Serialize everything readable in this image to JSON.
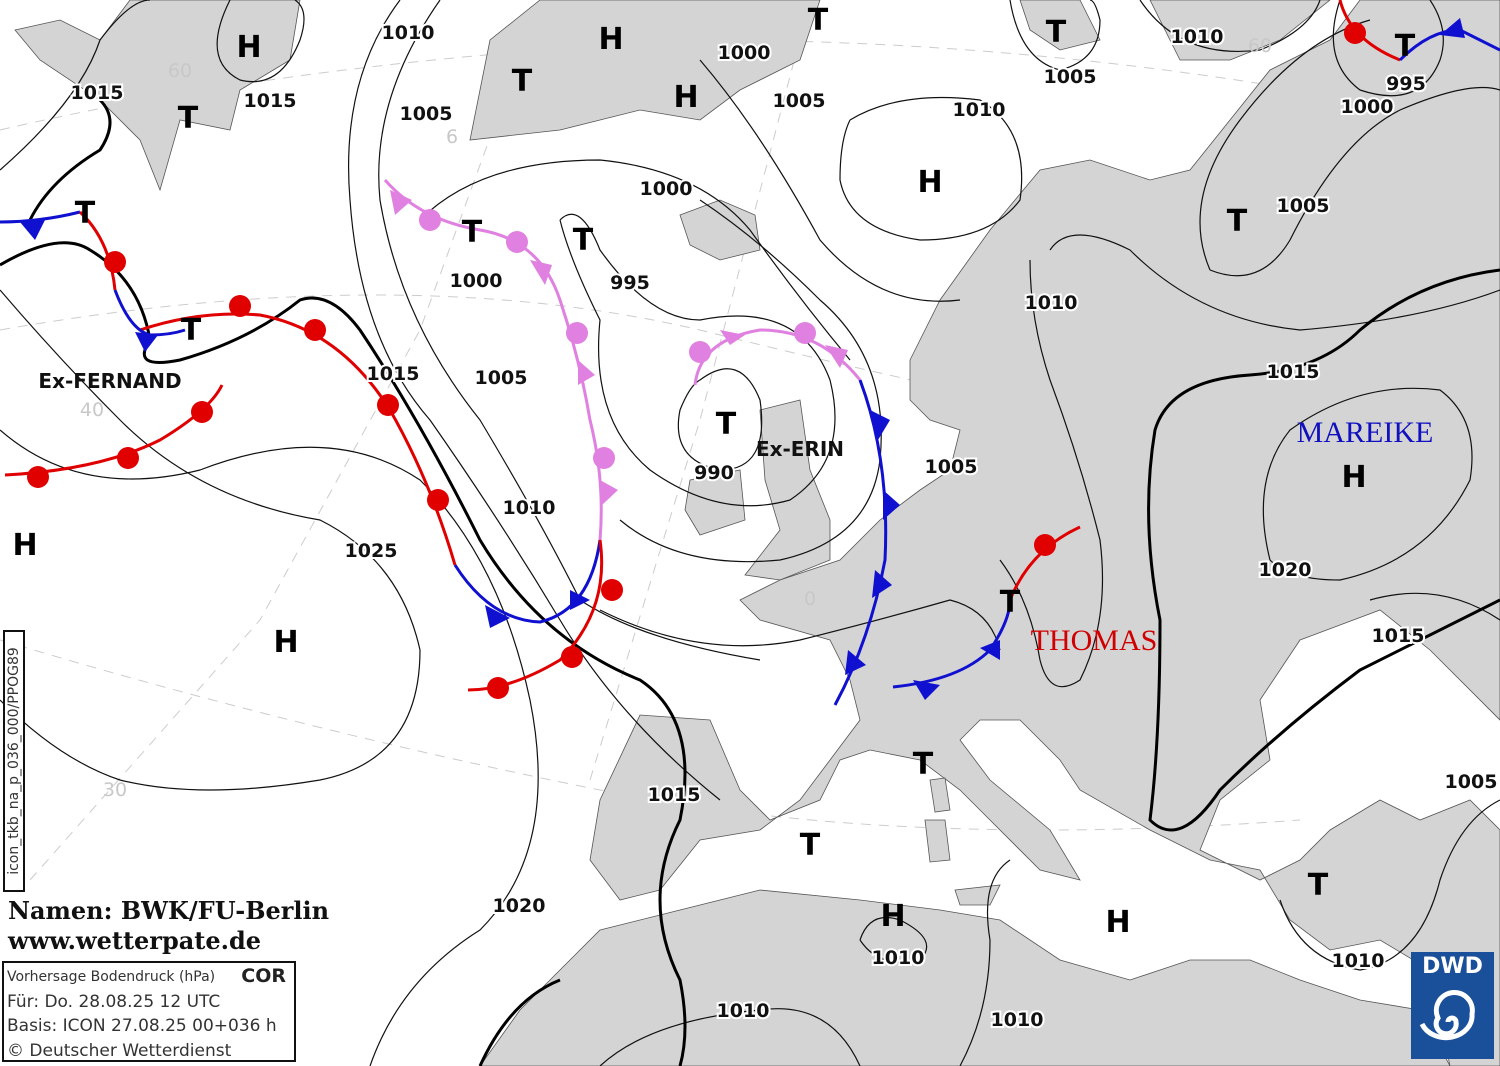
{
  "map": {
    "background_color": "#ffffff",
    "land_color": "#d4d4d4",
    "warm_front_color": "#e00000",
    "cold_front_color": "#1010d0",
    "occlusion_color": "#e080e0",
    "isobar_labels": [
      "1015",
      "1015",
      "1010",
      "1005",
      "1000",
      "1005",
      "1010",
      "1005",
      "1010",
      "995",
      "1000",
      "1000",
      "1005",
      "1000",
      "995",
      "1010",
      "1015",
      "1005",
      "1015",
      "990",
      "1005",
      "1010",
      "1025",
      "1020",
      "1015",
      "1015",
      "1005",
      "1020",
      "1010",
      "1010",
      "1010",
      "1010"
    ],
    "high_symbol": "H",
    "low_symbol": "T",
    "lat_labels": [
      "60",
      "6",
      "40",
      "30",
      "0",
      "60"
    ],
    "systems": {
      "ex_fernand": "Ex-FERNAND",
      "ex_erin": "Ex-ERIN",
      "mareike": "MAREIKE",
      "thomas": "THOMAS"
    }
  },
  "credits": {
    "names": "Namen: BWK/FU-Berlin",
    "website": "www.wetterpate.de"
  },
  "info_box": {
    "title": "Vorhersage Bodendruck (hPa)",
    "cor": "COR",
    "valid": "Für:  Do. 28.08.25  12 UTC",
    "basis": "Basis: ICON  27.08.25 00+036 h",
    "copyright": "© Deutscher Wetterdienst"
  },
  "run_id": "icon_tkb_na_p_036_000/PPOG89",
  "logo": {
    "text": "DWD",
    "color": "#1a4f9a"
  }
}
